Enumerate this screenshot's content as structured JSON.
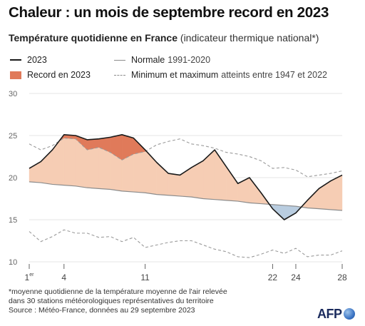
{
  "header": {
    "title": "Chaleur : un mois de septembre record en 2023",
    "subtitle_bold": "Température quotidienne en France",
    "subtitle_rest": " (indicateur thermique national*)"
  },
  "legend": {
    "series_2023": "2023",
    "record": "Record en 2023",
    "normal_bold": "Normale",
    "normal_light": "1991-2020",
    "minmax_bold": "Minimum et maximum",
    "minmax_light": "atteints entre 1947 et 2022"
  },
  "footnote": {
    "line1": "*moyenne quotidienne de la température moyenne de l'air relevée",
    "line2": "dans 30 stations météorologiques représentatives du territoire",
    "line3": "Source : Météo-France, données au 29 septembre 2023"
  },
  "logo": {
    "text": "AFP"
  },
  "colors": {
    "line_2023": "#1a1a1a",
    "record_fill": "#e07a5a",
    "above_fill": "#f6cdb4",
    "below_fill": "#b9cde0",
    "normal_line": "#8c8c8c",
    "minmax_line": "#9a9a9a",
    "grid": "#e6e6e6"
  },
  "chart_data": {
    "type": "line",
    "xlabel": "",
    "ylabel": "",
    "xlim": [
      1,
      28
    ],
    "ylim": [
      10,
      30
    ],
    "y_ticks": [
      10,
      15,
      20,
      25,
      30
    ],
    "x_ticks": [
      {
        "value": 1,
        "label": "1",
        "sup": "er"
      },
      {
        "value": 4,
        "label": "4"
      },
      {
        "value": 11,
        "label": "11"
      },
      {
        "value": 22,
        "label": "22"
      },
      {
        "value": 24,
        "label": "24"
      },
      {
        "value": 28,
        "label": "28"
      }
    ],
    "grid": true,
    "x": [
      1,
      2,
      3,
      4,
      5,
      6,
      7,
      8,
      9,
      10,
      11,
      12,
      13,
      14,
      15,
      16,
      17,
      18,
      19,
      20,
      21,
      22,
      23,
      24,
      25,
      26,
      27,
      28
    ],
    "series": [
      {
        "name": "2023",
        "values": [
          21.1,
          21.9,
          23.3,
          25.1,
          25.0,
          24.5,
          24.6,
          24.8,
          25.1,
          24.7,
          23.3,
          21.8,
          20.5,
          20.3,
          21.2,
          22.0,
          23.3,
          21.3,
          19.3,
          20.0,
          18.2,
          16.3,
          15.0,
          15.8,
          17.3,
          18.7,
          19.6,
          20.3
        ]
      },
      {
        "name": "Normale",
        "values": [
          19.5,
          19.4,
          19.2,
          19.1,
          19.0,
          18.8,
          18.7,
          18.6,
          18.4,
          18.3,
          18.2,
          18.0,
          17.9,
          17.8,
          17.7,
          17.5,
          17.4,
          17.3,
          17.2,
          17.0,
          16.9,
          16.8,
          16.7,
          16.6,
          16.4,
          16.3,
          16.2,
          16.1
        ]
      },
      {
        "name": "Maximum",
        "values": [
          24.0,
          23.3,
          23.8,
          24.7,
          24.6,
          23.3,
          23.6,
          23.0,
          22.1,
          22.8,
          23.1,
          23.9,
          24.3,
          24.6,
          24.0,
          23.8,
          23.5,
          23.0,
          22.8,
          22.5,
          22.0,
          21.1,
          21.2,
          20.9,
          20.1,
          20.3,
          20.5,
          20.8
        ]
      },
      {
        "name": "Minimum",
        "values": [
          13.6,
          12.4,
          13.0,
          13.8,
          13.4,
          13.4,
          12.9,
          13.0,
          12.4,
          12.9,
          11.7,
          12.0,
          12.3,
          12.5,
          12.5,
          12.0,
          11.5,
          11.2,
          10.6,
          10.5,
          10.9,
          11.4,
          11.0,
          11.6,
          10.6,
          10.8,
          10.8,
          11.3
        ]
      }
    ]
  }
}
